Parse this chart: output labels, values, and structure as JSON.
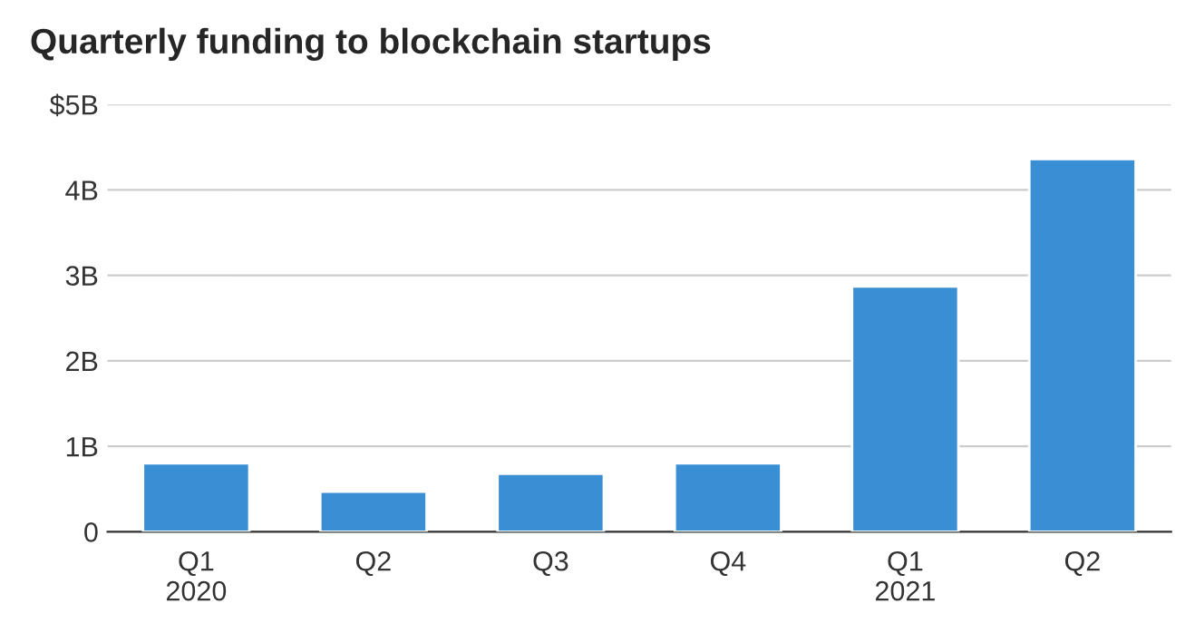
{
  "chart_data": {
    "type": "bar",
    "title": "Quarterly funding to blockchain startups",
    "categories": [
      "Q1\n2020",
      "Q2",
      "Q3",
      "Q4",
      "Q1\n2021",
      "Q2"
    ],
    "values": [
      0.8,
      0.47,
      0.68,
      0.8,
      2.87,
      4.36
    ],
    "color": "#3a8fd4",
    "ylim": [
      0,
      5
    ],
    "yticks": [
      {
        "value": 0,
        "label": "0"
      },
      {
        "value": 1,
        "label": "1B"
      },
      {
        "value": 2,
        "label": "2B"
      },
      {
        "value": 3,
        "label": "3B"
      },
      {
        "value": 4,
        "label": "4B"
      },
      {
        "value": 5,
        "label": "$5B"
      }
    ],
    "grid": "y"
  }
}
